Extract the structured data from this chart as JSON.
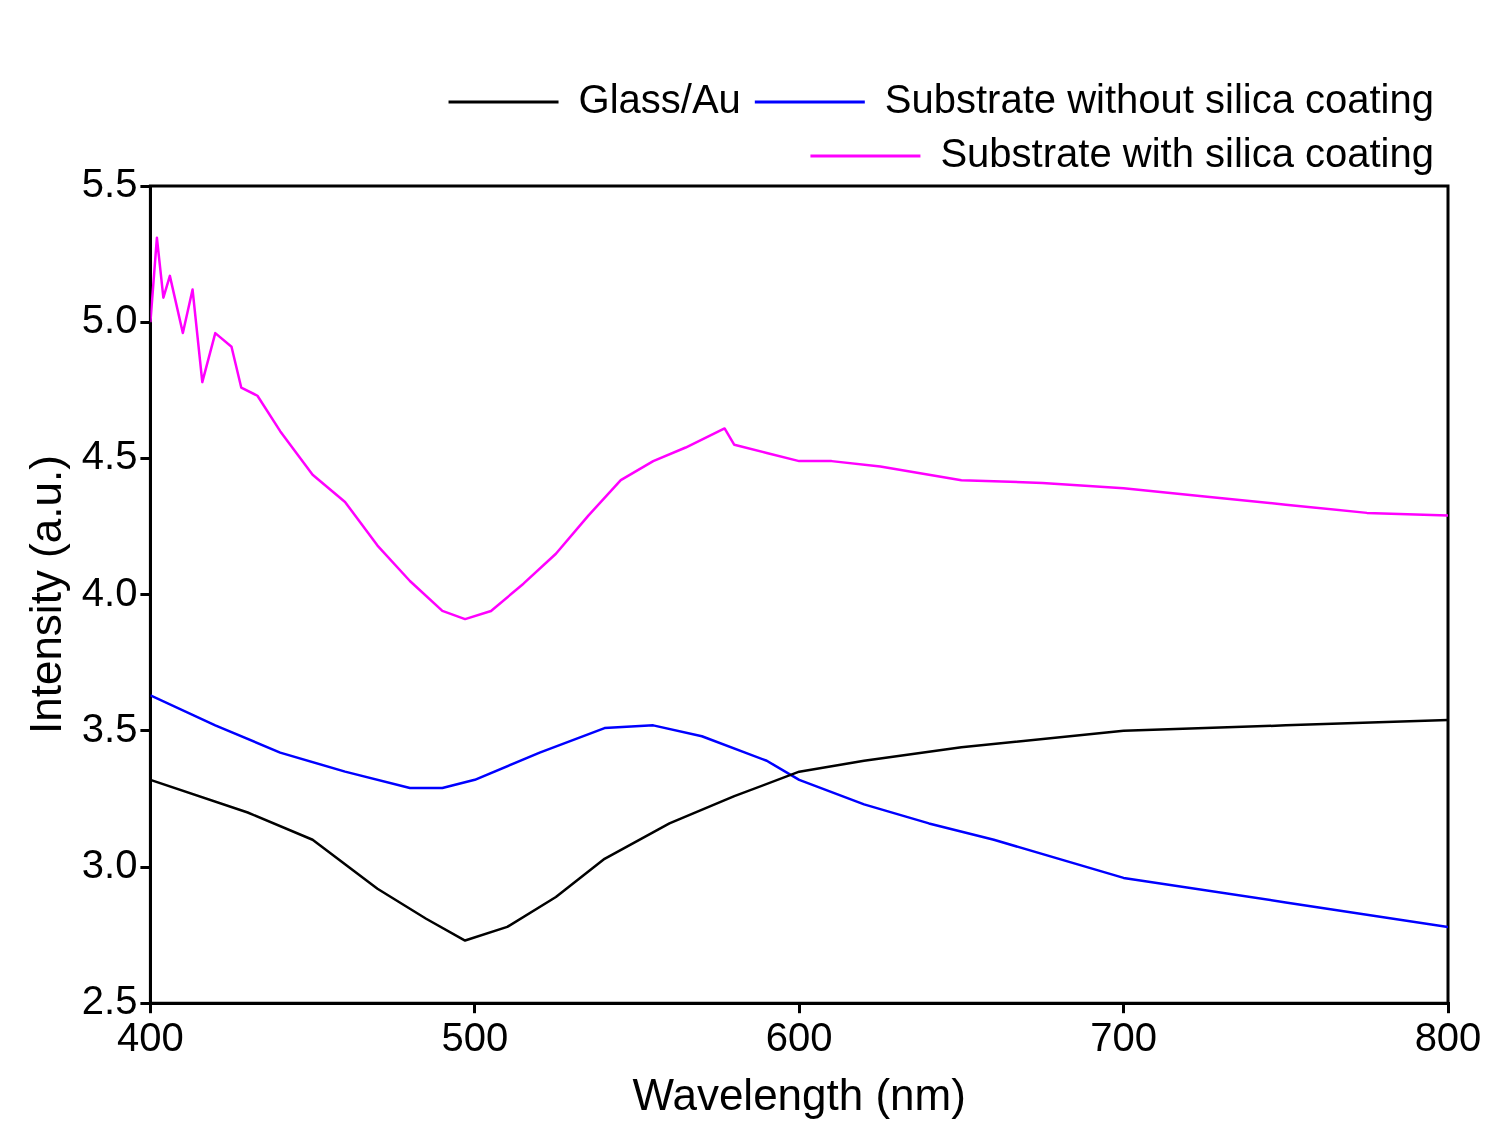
{
  "chart_data": {
    "type": "line",
    "xlabel": "Wavelength (nm)",
    "ylabel": "Intensity (a.u.)",
    "xlim": [
      400,
      800
    ],
    "xticks": [
      400,
      500,
      600,
      700,
      800
    ],
    "ylim": [
      2.5,
      5.5
    ],
    "yticks": [
      {
        "value": 2.5,
        "label": "2.5"
      },
      {
        "value": 3,
        "label": "3.0"
      },
      {
        "value": 3.5,
        "label": "3.5"
      },
      {
        "value": 4,
        "label": "4.0"
      },
      {
        "value": 4.5,
        "label": "4.5"
      },
      {
        "value": 5,
        "label": "5.0"
      },
      {
        "value": 5.5,
        "label": "5.5"
      }
    ],
    "grid": false,
    "legend": "top right",
    "marker": "none",
    "line_style": "solid",
    "series": [
      {
        "name": "Glass/Au",
        "color": "#000000",
        "x": [
          400,
          430,
          450,
          470,
          485,
          497,
          510,
          525,
          540,
          560,
          580,
          600,
          620,
          650,
          700,
          750,
          800
        ],
        "values": [
          3.32,
          3.2,
          3.1,
          2.92,
          2.81,
          2.73,
          2.78,
          2.89,
          3.03,
          3.16,
          3.26,
          3.35,
          3.39,
          3.44,
          3.5,
          3.52,
          3.54
        ]
      },
      {
        "name": "Substrate without silica coating",
        "color": "#0000ff",
        "x": [
          400,
          420,
          440,
          460,
          480,
          490,
          500,
          520,
          540,
          555,
          570,
          590,
          600,
          620,
          640,
          660,
          700,
          750,
          800
        ],
        "values": [
          3.63,
          3.52,
          3.42,
          3.35,
          3.29,
          3.29,
          3.32,
          3.42,
          3.51,
          3.52,
          3.48,
          3.39,
          3.32,
          3.23,
          3.16,
          3.1,
          2.96,
          2.87,
          2.78
        ]
      },
      {
        "name": "Substrate with silica coating",
        "color": "#ff00ff",
        "x": [
          400,
          402,
          404,
          406,
          410,
          413,
          416,
          420,
          425,
          428,
          433,
          440,
          450,
          460,
          470,
          480,
          490,
          497,
          505,
          515,
          525,
          535,
          545,
          555,
          565,
          577,
          580,
          590,
          600,
          610,
          625,
          650,
          675,
          700,
          725,
          750,
          775,
          800
        ],
        "values": [
          5.0,
          5.31,
          5.09,
          5.17,
          4.96,
          5.12,
          4.78,
          4.96,
          4.91,
          4.76,
          4.73,
          4.6,
          4.44,
          4.34,
          4.18,
          4.05,
          3.94,
          3.91,
          3.94,
          4.04,
          4.15,
          4.29,
          4.42,
          4.49,
          4.54,
          4.61,
          4.55,
          4.52,
          4.49,
          4.49,
          4.47,
          4.42,
          4.41,
          4.39,
          4.36,
          4.33,
          4.3,
          4.29
        ]
      }
    ]
  }
}
